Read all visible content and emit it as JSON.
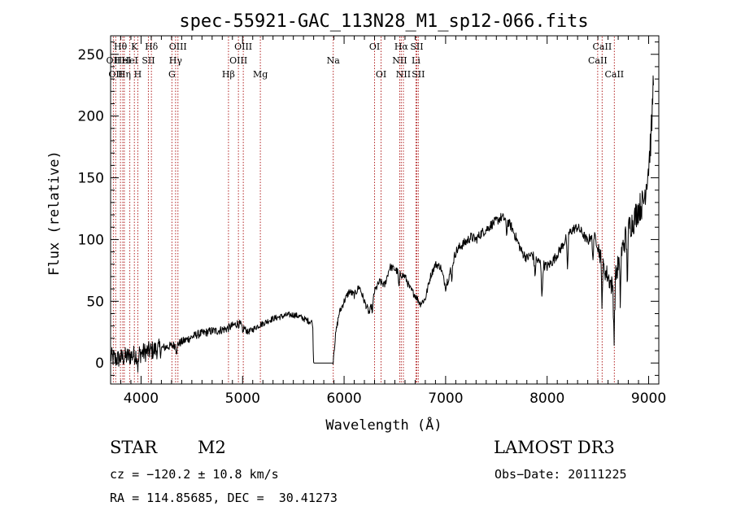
{
  "chart_data": {
    "type": "line",
    "title": "spec-55921-GAC_113N28_M1_sp12-066.fits",
    "xlabel": "Wavelength (Å)",
    "ylabel": "Flux (relative)",
    "xlim": [
      3700,
      9100
    ],
    "ylim": [
      -17,
      265
    ],
    "xticks": [
      4000,
      5000,
      6000,
      7000,
      8000,
      9000
    ],
    "yticks": [
      0,
      50,
      100,
      150,
      200,
      250
    ],
    "line_color": "#000000",
    "marker_color": "#b22222",
    "spectrum_anchors": {
      "x": [
        3700,
        3750,
        3800,
        3850,
        3900,
        3950,
        4000,
        4050,
        4100,
        4150,
        4200,
        4250,
        4300,
        4350,
        4400,
        4450,
        4500,
        4550,
        4600,
        4650,
        4700,
        4750,
        4800,
        4850,
        4900,
        4950,
        5000,
        5050,
        5100,
        5150,
        5200,
        5250,
        5300,
        5350,
        5400,
        5450,
        5500,
        5550,
        5600,
        5650,
        5690,
        5700,
        5750,
        5800,
        5850,
        5890,
        5900,
        5920,
        5950,
        6000,
        6050,
        6100,
        6150,
        6200,
        6250,
        6300,
        6350,
        6400,
        6450,
        6500,
        6550,
        6600,
        6650,
        6700,
        6750,
        6800,
        6850,
        6900,
        6950,
        7000,
        7050,
        7100,
        7150,
        7200,
        7250,
        7300,
        7350,
        7400,
        7450,
        7500,
        7550,
        7600,
        7650,
        7700,
        7750,
        7800,
        7850,
        7900,
        7950,
        8000,
        8050,
        8100,
        8150,
        8200,
        8250,
        8300,
        8350,
        8400,
        8450,
        8500,
        8550,
        8600,
        8650,
        8700,
        8750,
        8800,
        8850,
        8900,
        8950,
        9000,
        9030,
        9050
      ],
      "y": [
        5,
        3,
        4,
        5,
        6,
        7,
        8,
        9,
        10,
        11,
        12,
        13,
        14,
        15,
        17,
        19,
        21,
        23,
        24,
        25,
        26,
        26,
        27,
        28,
        30,
        32,
        30,
        25,
        27,
        30,
        32,
        34,
        36,
        37,
        38,
        39,
        39,
        38,
        36,
        34,
        33,
        0,
        0,
        0,
        0,
        0,
        10,
        25,
        40,
        50,
        58,
        55,
        62,
        50,
        40,
        58,
        66,
        63,
        78,
        76,
        72,
        70,
        60,
        55,
        48,
        52,
        70,
        80,
        78,
        62,
        75,
        90,
        95,
        98,
        102,
        100,
        105,
        108,
        112,
        115,
        118,
        116,
        110,
        100,
        90,
        85,
        88,
        83,
        80,
        78,
        82,
        88,
        95,
        103,
        108,
        110,
        105,
        98,
        106,
        95,
        78,
        70,
        60,
        80,
        95,
        110,
        115,
        125,
        130,
        160,
        190,
        240
      ]
    },
    "absorption_dips": [
      {
        "x": 3970,
        "depth": 12
      },
      {
        "x": 4350,
        "depth": 6
      },
      {
        "x": 5000,
        "depth": 6
      },
      {
        "x": 6280,
        "depth": 10
      },
      {
        "x": 6540,
        "depth": 12
      },
      {
        "x": 7060,
        "depth": 10
      },
      {
        "x": 7600,
        "depth": 12
      },
      {
        "x": 7880,
        "depth": 15
      },
      {
        "x": 7950,
        "depth": 30
      },
      {
        "x": 8200,
        "depth": 30
      },
      {
        "x": 8450,
        "depth": 25
      },
      {
        "x": 8540,
        "depth": 30
      },
      {
        "x": 8660,
        "depth": 45
      },
      {
        "x": 8720,
        "depth": 35
      },
      {
        "x": 8790,
        "depth": 40
      }
    ],
    "lines": [
      {
        "x": 3727,
        "label": "OII",
        "row": 1
      },
      {
        "x": 3750,
        "label": "OII",
        "row": 2
      },
      {
        "x": 3797,
        "label": "Hθ",
        "row": 0
      },
      {
        "x": 3820,
        "label": "HeI",
        "row": 1
      },
      {
        "x": 3835,
        "label": "Hη",
        "row": 2
      },
      {
        "x": 3889,
        "label": "HeI",
        "row": 1
      },
      {
        "x": 3934,
        "label": "K",
        "row": 0
      },
      {
        "x": 3968,
        "label": "H",
        "row": 2
      },
      {
        "x": 4072,
        "label": "SII",
        "row": 1
      },
      {
        "x": 4102,
        "label": "Hδ",
        "row": 0
      },
      {
        "x": 4304,
        "label": "G",
        "row": 2
      },
      {
        "x": 4340,
        "label": "Hγ",
        "row": 1
      },
      {
        "x": 4363,
        "label": "OIII",
        "row": 0
      },
      {
        "x": 4861,
        "label": "Hβ",
        "row": 2
      },
      {
        "x": 4959,
        "label": "OIII",
        "row": 1
      },
      {
        "x": 5007,
        "label": "OIII",
        "row": 0
      },
      {
        "x": 5175,
        "label": "Mg",
        "row": 2
      },
      {
        "x": 5893,
        "label": "Na",
        "row": 1
      },
      {
        "x": 6300,
        "label": "OI",
        "row": 0
      },
      {
        "x": 6364,
        "label": "OI",
        "row": 2
      },
      {
        "x": 6548,
        "label": "NII",
        "row": 1
      },
      {
        "x": 6563,
        "label": "Hα",
        "row": 0
      },
      {
        "x": 6584,
        "label": "NII",
        "row": 2
      },
      {
        "x": 6708,
        "label": "Li",
        "row": 1
      },
      {
        "x": 6716,
        "label": "SII",
        "row": 0
      },
      {
        "x": 6731,
        "label": "SII",
        "row": 2
      },
      {
        "x": 8498,
        "label": "CaII",
        "row": 1
      },
      {
        "x": 8542,
        "label": "CaII",
        "row": 0
      },
      {
        "x": 8662,
        "label": "CaII",
        "row": 2
      }
    ]
  },
  "info": {
    "object_class": "STAR",
    "subclass": "M2",
    "survey": "LAMOST DR3",
    "velocity": "cz = −120.2 ± 10.8 km/s",
    "obs_date": "Obs−Date: 20111225",
    "coords": "RA = 114.85685, DEC =  30.41273"
  }
}
